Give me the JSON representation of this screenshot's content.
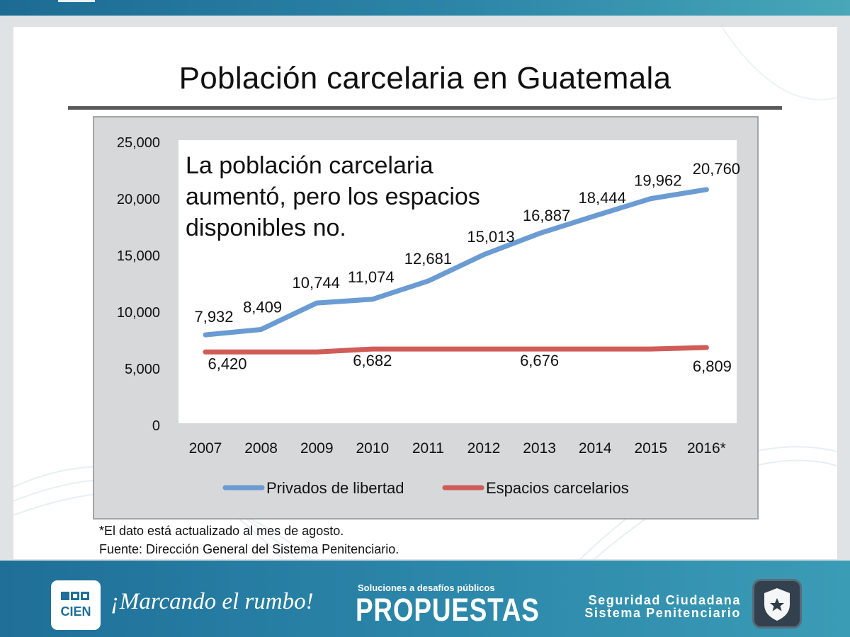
{
  "slide": {
    "title": "Población carcelaria en Guatemala",
    "annotation": "La población carcelaria aumentó, pero los espacios disponibles no.",
    "footnote": "*El dato está actualizado al mes de agosto.",
    "source": "Fuente: Dirección General del Sistema Penitenciario."
  },
  "footer": {
    "logo_text": "CIEN",
    "slogan": "¡Marcando el rumbo!",
    "propuestas_subtitle": "Soluciones a desafíos públicos",
    "propuestas_title": "PROPUESTAS",
    "section_line1": "Seguridad Ciudadana",
    "section_line2": "Sistema Penitenciario",
    "shield_icon": "shield-star-icon"
  },
  "colors": {
    "series_privados": "#6a9bd3",
    "series_espacios": "#d05c58",
    "footer_blue": "#1f6f98"
  },
  "chart_data": {
    "type": "line",
    "x": [
      "2007",
      "2008",
      "2009",
      "2010",
      "2011",
      "2012",
      "2013",
      "2014",
      "2015",
      "2016*"
    ],
    "ylim": [
      0,
      25000
    ],
    "yticks": [
      "0",
      "5,000",
      "10,000",
      "15,000",
      "20,000",
      "25,000"
    ],
    "yticks_values": [
      0,
      5000,
      10000,
      15000,
      20000,
      25000
    ],
    "grid": false,
    "legend_position": "bottom",
    "series": [
      {
        "name": "Privados de libertad",
        "values": [
          7932,
          8409,
          10744,
          11074,
          12681,
          15013,
          16887,
          18444,
          19962,
          20760
        ],
        "labels": [
          "7,932",
          "8,409",
          "10,744",
          "11,074",
          "12,681",
          "15,013",
          "16,887",
          "18,444",
          "19,962",
          "20,760"
        ]
      },
      {
        "name": "Espacios carcelarios",
        "values": [
          6420,
          6420,
          6420,
          6682,
          6682,
          6682,
          6676,
          6676,
          6676,
          6809
        ],
        "labels": [
          "6,420",
          "",
          "",
          "6,682",
          "",
          "",
          "6,676",
          "",
          "",
          "6,809"
        ]
      }
    ]
  }
}
